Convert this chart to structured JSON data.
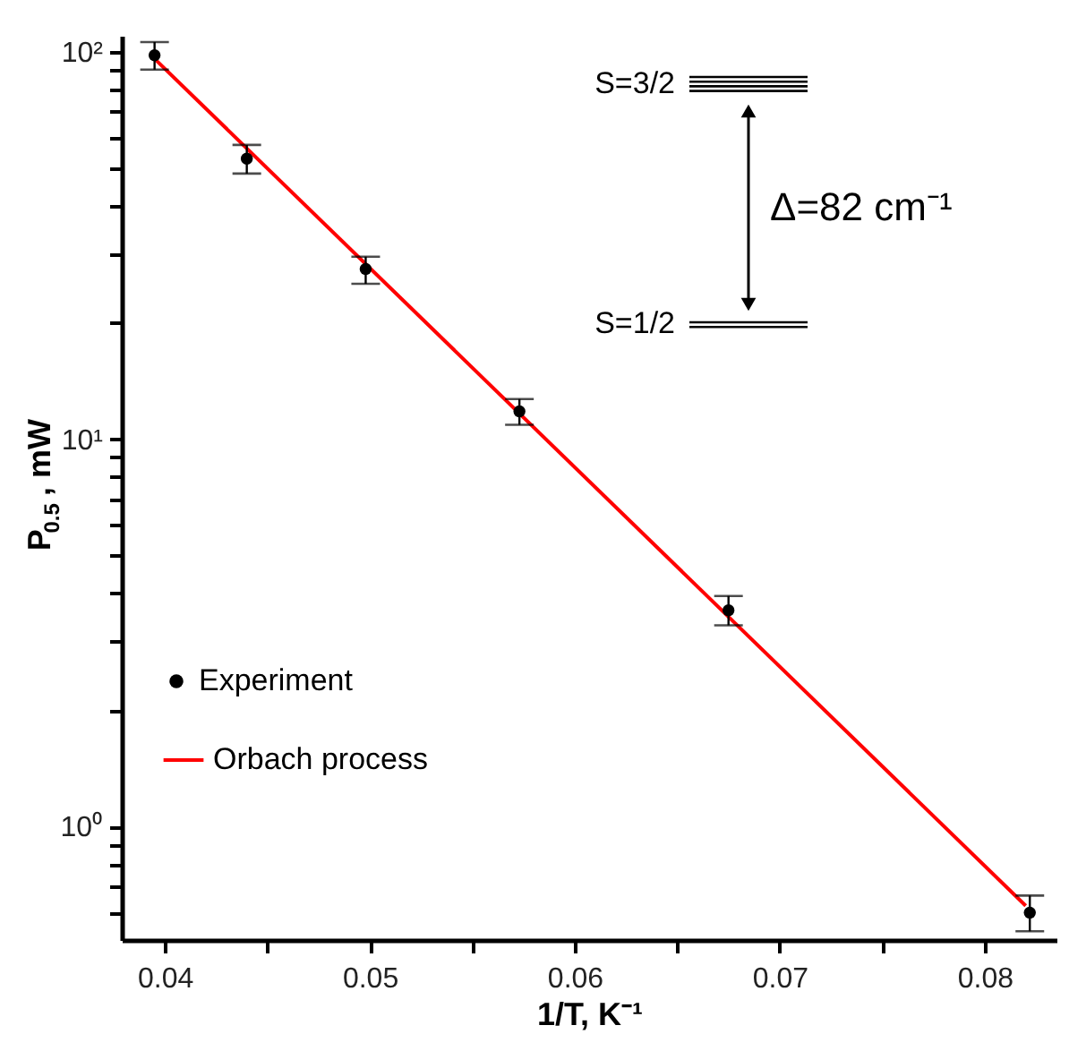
{
  "chart_data": {
    "type": "scatter",
    "xlabel": "1/T, K⁻¹",
    "ylabel": "P$_{0.5}$, mW",
    "log": "y",
    "grid": false,
    "legend": "bottom left",
    "xlim": [
      0.0379,
      0.0835
    ],
    "xticks": [
      0.04,
      {
        "value": 0.045,
        "label": null
      },
      0.05,
      {
        "value": 0.055,
        "label": null
      },
      0.06,
      {
        "value": 0.065,
        "label": null
      },
      0.07,
      {
        "value": 0.075,
        "label": null
      },
      0.08
    ],
    "ylim": [
      0.51,
      110
    ],
    "yticks": [
      {
        "value": 0.6,
        "label": null
      },
      {
        "value": 0.7,
        "label": null
      },
      {
        "value": 0.8,
        "label": null
      },
      {
        "value": 0.9,
        "label": null
      },
      {
        "value": 1,
        "label": "10⁰"
      },
      {
        "value": 2,
        "label": null
      },
      {
        "value": 3,
        "label": null
      },
      {
        "value": 4,
        "label": null
      },
      {
        "value": 5,
        "label": null
      },
      {
        "value": 6,
        "label": null
      },
      {
        "value": 7,
        "label": null
      },
      {
        "value": 8,
        "label": null
      },
      {
        "value": 9,
        "label": null
      },
      {
        "value": 10,
        "label": "10¹"
      },
      {
        "value": 20,
        "label": null
      },
      {
        "value": 30,
        "label": null
      },
      {
        "value": 40,
        "label": null
      },
      {
        "value": 50,
        "label": null
      },
      {
        "value": 60,
        "label": null
      },
      {
        "value": 70,
        "label": null
      },
      {
        "value": 80,
        "label": null
      },
      {
        "value": 90,
        "label": null
      },
      {
        "value": 100,
        "label": "10²"
      }
    ],
    "annotations": [
      "S=3/2",
      "S=1/2",
      "Δ=82 cm⁻¹"
    ],
    "series": [
      {
        "name": "Experiment",
        "type": "scatter",
        "marker": "circle",
        "color": "#000000",
        "x": [
          0.0395,
          0.044,
          0.0498,
          0.0573,
          0.0675,
          0.0822
        ],
        "values": [
          98,
          53,
          27.5,
          11.8,
          3.62,
          0.6
        ],
        "errors": [
          [
            90,
            106
          ],
          [
            48.5,
            57.5
          ],
          [
            25.2,
            29.6
          ],
          [
            10.9,
            12.7
          ],
          [
            3.31,
            3.94
          ],
          [
            0.537,
            0.664
          ]
        ]
      },
      {
        "name": "Orbach process",
        "type": "line",
        "line_style": "solid",
        "color": "#ff0000",
        "x": [
          0.0395,
          0.082
        ],
        "values": [
          96,
          0.625
        ]
      }
    ]
  }
}
